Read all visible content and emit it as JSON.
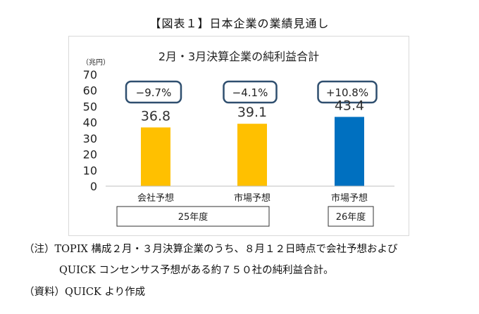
{
  "figure_title": "【図表１】日本企業の業績見通し",
  "chart_data": {
    "type": "bar",
    "title": "2月・3月決算企業の純利益合計",
    "ylabel": "（兆円）",
    "ylim": [
      0,
      70
    ],
    "yticks": [
      0,
      10,
      20,
      30,
      40,
      50,
      60,
      70
    ],
    "categories": [
      "会社予想",
      "市場予想",
      "市場予想"
    ],
    "values": [
      36.8,
      39.1,
      43.4
    ],
    "value_labels": [
      "36.8",
      "39.1",
      "43.4"
    ],
    "change_labels": [
      "−9.7%",
      "−4.1%",
      "+10.8%"
    ],
    "bar_colors": [
      "#ffc000",
      "#ffc000",
      "#0070c0"
    ],
    "groups": [
      {
        "label": "25年度",
        "categories": [
          0,
          1
        ]
      },
      {
        "label": "26年度",
        "categories": [
          2
        ]
      }
    ],
    "grid": false
  },
  "notes": {
    "note1_line1": "（注）TOPIX 構成２月・３月決算企業のうち、８月１２日時点で会社予想および",
    "note1_line2": "QUICK コンセンサス予想がある約７５０社の純利益合計。",
    "note2": "（資料）QUICK より作成"
  },
  "colors": {
    "axis": "#bfbfbf",
    "badge_border": "#2f4f6f",
    "text": "#222222"
  }
}
